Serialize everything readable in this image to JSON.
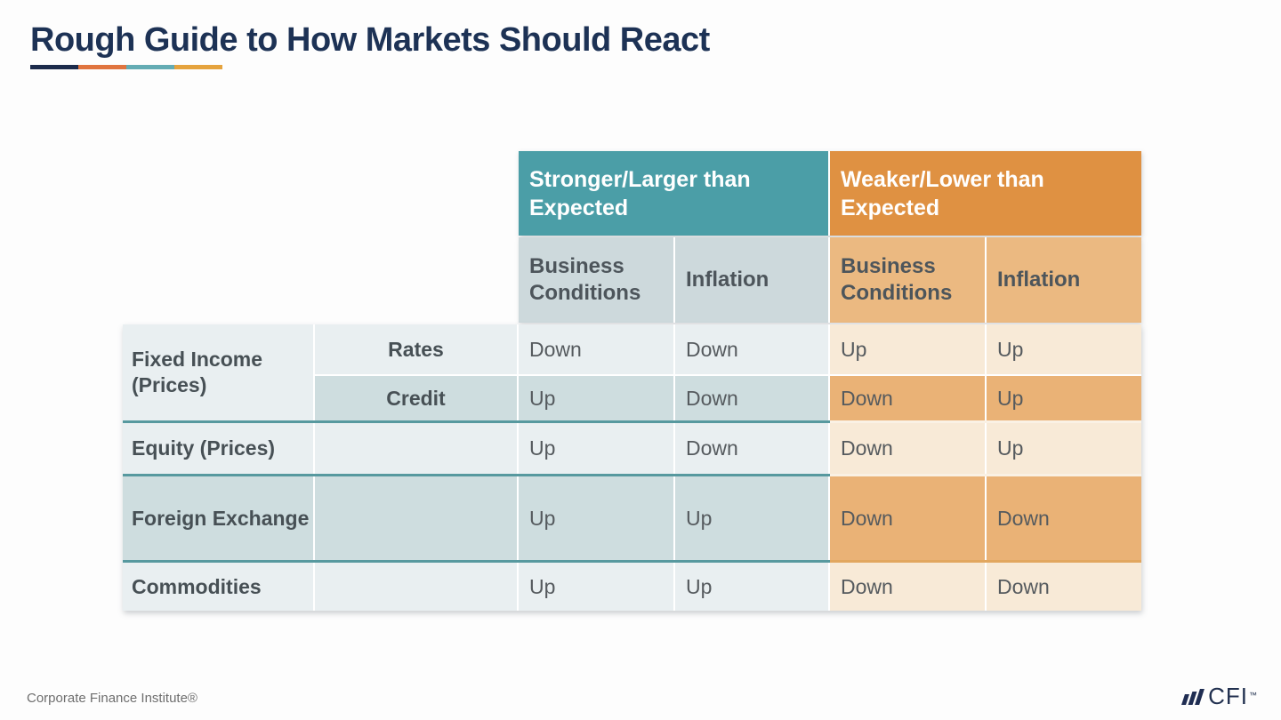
{
  "slide": {
    "title": "Rough Guide to How Markets Should React",
    "footer": "Corporate Finance Institute®",
    "logo_text": "CFI",
    "logo_tm": "™"
  },
  "colors": {
    "header_teal": "#4B9EA7",
    "header_orange": "#DF9142",
    "subheader_blue": "#CDD9DC",
    "subheader_orange": "#EBB981",
    "row_cool_light": "#E9EFF1",
    "row_cool_dark": "#CEDDDF",
    "row_warm_light": "#F8EAD7",
    "row_warm_dark": "#EAB276",
    "divider_teal": "#57999F",
    "title_navy": "#1D3255"
  },
  "chart_data": {
    "type": "table",
    "title": "Rough Guide to How Markets Should React",
    "column_groups": [
      "Stronger/Larger than Expected",
      "Weaker/Lower than Expected"
    ],
    "columns": [
      "Business Conditions",
      "Inflation",
      "Business Conditions",
      "Inflation"
    ],
    "rows": [
      {
        "group": "Fixed Income (Prices)",
        "sub": "Rates",
        "values": [
          "Down",
          "Down",
          "Up",
          "Up"
        ]
      },
      {
        "group": "Fixed Income (Prices)",
        "sub": "Credit",
        "values": [
          "Up",
          "Down",
          "Down",
          "Up"
        ]
      },
      {
        "group": "Equity (Prices)",
        "sub": "",
        "values": [
          "Up",
          "Down",
          "Down",
          "Up"
        ]
      },
      {
        "group": "Foreign Exchange",
        "sub": "",
        "values": [
          "Up",
          "Up",
          "Down",
          "Down"
        ]
      },
      {
        "group": "Commodities",
        "sub": "",
        "values": [
          "Up",
          "Up",
          "Down",
          "Down"
        ]
      }
    ]
  },
  "table": {
    "col_groups": [
      {
        "label": "Stronger/Larger than Expected"
      },
      {
        "label": "Weaker/Lower than Expected"
      }
    ],
    "sub_headers": [
      "Business Conditions",
      "Inflation",
      "Business Conditions",
      "Inflation"
    ],
    "rows": [
      {
        "group": "Fixed Income (Prices)",
        "sub": "Rates",
        "values": [
          "Down",
          "Down",
          "Up",
          "Up"
        ]
      },
      {
        "group": "",
        "sub": "Credit",
        "values": [
          "Up",
          "Down",
          "Down",
          "Up"
        ]
      },
      {
        "group": "Equity (Prices)",
        "sub": "",
        "values": [
          "Up",
          "Down",
          "Down",
          "Up"
        ]
      },
      {
        "group": "Foreign Exchange",
        "sub": "",
        "values": [
          "Up",
          "Up",
          "Down",
          "Down"
        ]
      },
      {
        "group": "Commodities",
        "sub": "",
        "values": [
          "Up",
          "Up",
          "Down",
          "Down"
        ]
      }
    ]
  }
}
